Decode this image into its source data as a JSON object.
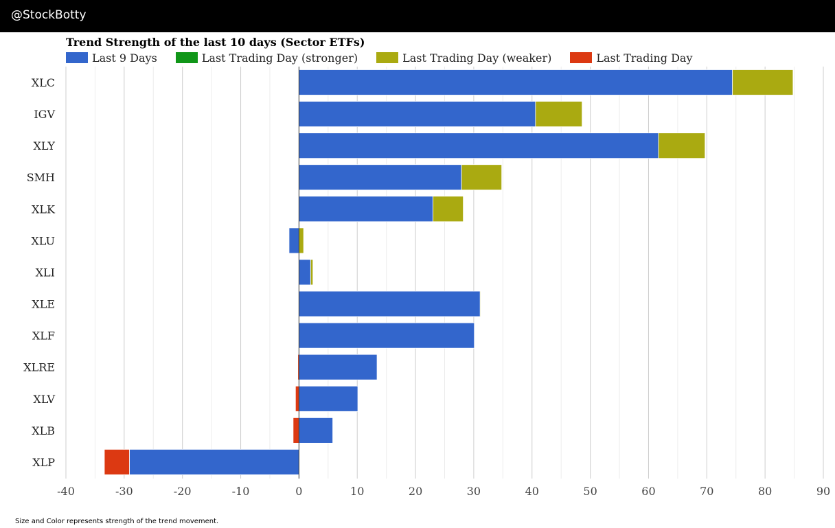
{
  "header": {
    "handle": "@StockBotty"
  },
  "footnote": "Size and Color represents strength of the trend movement.",
  "colors": {
    "last9": "#3366cc",
    "stronger": "#109618",
    "weaker": "#aaaa11",
    "last_day": "#dc3912"
  },
  "chart_data": {
    "type": "bar",
    "orientation": "horizontal",
    "stacked": true,
    "title": "Trend Strength of the last 10 days (Sector ETFs)",
    "legend_position": "top-left",
    "legend": [
      {
        "name": "Last 9 Days",
        "color": "#3366cc"
      },
      {
        "name": "Last Trading Day (stronger)",
        "color": "#109618"
      },
      {
        "name": "Last Trading Day (weaker)",
        "color": "#aaaa11"
      },
      {
        "name": "Last Trading Day",
        "color": "#dc3912"
      }
    ],
    "xlim": [
      -40,
      90
    ],
    "xticks": [
      -40,
      -30,
      -20,
      -10,
      0,
      10,
      20,
      30,
      40,
      50,
      60,
      70,
      80,
      90
    ],
    "grid": true,
    "categories": [
      "XLC",
      "IGV",
      "XLY",
      "SMH",
      "XLK",
      "XLU",
      "XLI",
      "XLE",
      "XLF",
      "XLRE",
      "XLV",
      "XLB",
      "XLP"
    ],
    "series": [
      {
        "name": "Last 9 Days",
        "values": [
          74.4,
          40.6,
          61.7,
          27.9,
          23.0,
          -1.7,
          2.0,
          31.1,
          30.1,
          13.4,
          10.1,
          5.8,
          -29.1
        ]
      },
      {
        "name": "Last Trading Day (stronger)",
        "values": [
          0,
          0,
          0,
          0,
          0,
          0,
          0,
          0,
          0,
          0,
          0,
          0,
          0
        ]
      },
      {
        "name": "Last Trading Day (weaker)",
        "values": [
          10.4,
          8.0,
          8.0,
          6.9,
          5.2,
          0.8,
          0.4,
          0.1,
          0,
          0,
          0,
          0,
          0
        ]
      },
      {
        "name": "Last Trading Day",
        "values": [
          0,
          0,
          0,
          0,
          0,
          0,
          0,
          0,
          0,
          -0.2,
          -0.6,
          -1.0,
          -4.3
        ]
      }
    ]
  }
}
